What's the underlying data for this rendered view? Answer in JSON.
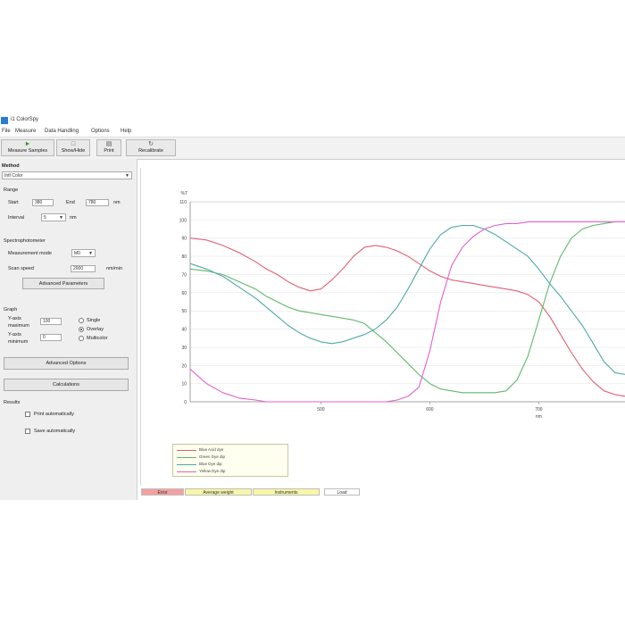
{
  "app": {
    "title": "i1 ColorSpy"
  },
  "menu": [
    "File",
    "Measure",
    "Data Handling",
    "Options",
    "Help"
  ],
  "toolbar": {
    "buttons": [
      {
        "label": "Measure Samples",
        "icon": "measure-icon"
      },
      {
        "label": "Show/Hide",
        "icon": "show-hide-icon"
      },
      {
        "label": "Print",
        "icon": "print-icon"
      },
      {
        "label": "Recalibrate",
        "icon": "recalibrate-icon"
      }
    ]
  },
  "panel": {
    "method_label": "Method",
    "method_value": "Intf Color",
    "range_label": "Range",
    "start_label": "Start",
    "start_value": "380",
    "end_label": "End",
    "end_value": "780",
    "interval_label": "Interval",
    "interval_value": "5",
    "interval_unit": "nm",
    "nm_unit": "nm",
    "spectro_label": "Spectrophotometer",
    "wavelength_label": "Measurement mode",
    "wavelength_value": "M0",
    "scan_speed_label": "Scan speed",
    "scan_speed_value": "2000",
    "scan_speed_unit": "nm/min",
    "advanced_params_button": "Advanced Parameters",
    "graph_label": "Graph",
    "y_label1": "Y-axis",
    "y_label2": "maximum",
    "y_max_value": "100",
    "y_label3": "Y-axis",
    "y_label4": "minimum",
    "y_min_value": "0",
    "radio_single": "Single",
    "radio_overlay": "Overlay",
    "radio_multicolor": "Multicolor",
    "advanced_options_button": "Advanced Options",
    "calculations_button": "Calculations",
    "results_label": "Results",
    "print_auto_label": "Print automatically",
    "save_auto_label": "Save automatically"
  },
  "status": {
    "segments": [
      "Error",
      "Average weight",
      "Instruments",
      "Load"
    ],
    "colors": [
      "#f4a0a0",
      "#f7f7a8",
      "#f7f7a8",
      "#ffffff"
    ]
  },
  "chart_data": {
    "type": "line",
    "ylabel": "%T",
    "xlabel": "nm",
    "xlim": [
      380,
      780
    ],
    "ylim": [
      0,
      110
    ],
    "yticks": [
      0,
      10,
      20,
      30,
      40,
      50,
      60,
      70,
      80,
      90,
      100,
      110
    ],
    "xticks": [
      500,
      600,
      700
    ],
    "grid": true,
    "series": [
      {
        "name": "Blue Acid dye",
        "color": "#e06070",
        "x": [
          380,
          395,
          410,
          425,
          440,
          450,
          460,
          470,
          480,
          490,
          500,
          510,
          520,
          530,
          540,
          550,
          560,
          570,
          580,
          590,
          600,
          610,
          620,
          630,
          640,
          650,
          660,
          670,
          680,
          690,
          700,
          710,
          720,
          730,
          740,
          750,
          760,
          770,
          780
        ],
        "y": [
          90,
          89,
          86,
          82,
          77,
          73,
          70,
          66,
          63,
          61,
          62,
          67,
          73,
          80,
          85,
          86,
          85,
          83,
          80,
          76,
          72,
          69,
          67,
          66,
          65,
          64,
          63,
          62,
          61,
          59,
          55,
          47,
          37,
          27,
          18,
          11,
          6,
          4,
          3
        ]
      },
      {
        "name": "Green Dye dip",
        "color": "#60b868",
        "x": [
          380,
          395,
          410,
          425,
          440,
          450,
          460,
          470,
          480,
          490,
          500,
          510,
          520,
          530,
          540,
          550,
          560,
          570,
          580,
          590,
          600,
          610,
          620,
          630,
          640,
          650,
          660,
          670,
          680,
          690,
          700,
          710,
          720,
          730,
          740,
          750,
          760,
          770,
          780
        ],
        "y": [
          73,
          72,
          70,
          66,
          62,
          58,
          55,
          52,
          50,
          49,
          48,
          47,
          46,
          45,
          43,
          38,
          33,
          27,
          21,
          15,
          10,
          7,
          6,
          5,
          5,
          5,
          5,
          6,
          12,
          25,
          45,
          65,
          80,
          90,
          95,
          97,
          98,
          99,
          99
        ]
      },
      {
        "name": "Blue Dye dip",
        "color": "#4fa8a8",
        "x": [
          380,
          395,
          410,
          425,
          440,
          450,
          460,
          470,
          480,
          490,
          500,
          510,
          520,
          530,
          540,
          550,
          560,
          570,
          580,
          590,
          600,
          610,
          620,
          630,
          640,
          650,
          660,
          670,
          680,
          690,
          700,
          710,
          720,
          730,
          740,
          750,
          760,
          770,
          780
        ],
        "y": [
          76,
          73,
          69,
          63,
          57,
          52,
          47,
          42,
          38,
          35,
          33,
          32,
          33,
          35,
          37,
          40,
          45,
          52,
          62,
          73,
          84,
          92,
          96,
          97,
          97,
          95,
          92,
          88,
          84,
          80,
          73,
          65,
          58,
          50,
          42,
          32,
          22,
          16,
          15
        ]
      },
      {
        "name": "Yellow Dye dip",
        "color": "#e060d0",
        "x": [
          380,
          395,
          410,
          425,
          440,
          450,
          460,
          470,
          480,
          490,
          500,
          510,
          520,
          530,
          540,
          550,
          560,
          570,
          580,
          590,
          600,
          610,
          620,
          630,
          640,
          650,
          660,
          670,
          680,
          690,
          700,
          710,
          720,
          730,
          740,
          750,
          760,
          770,
          780
        ],
        "y": [
          18,
          10,
          5,
          2,
          1,
          0,
          0,
          0,
          0,
          0,
          0,
          0,
          0,
          0,
          0,
          0,
          0,
          1,
          3,
          8,
          28,
          55,
          75,
          85,
          91,
          95,
          97,
          98,
          98,
          99,
          99,
          99,
          99,
          99,
          99,
          99,
          99,
          99,
          99
        ]
      }
    ]
  }
}
